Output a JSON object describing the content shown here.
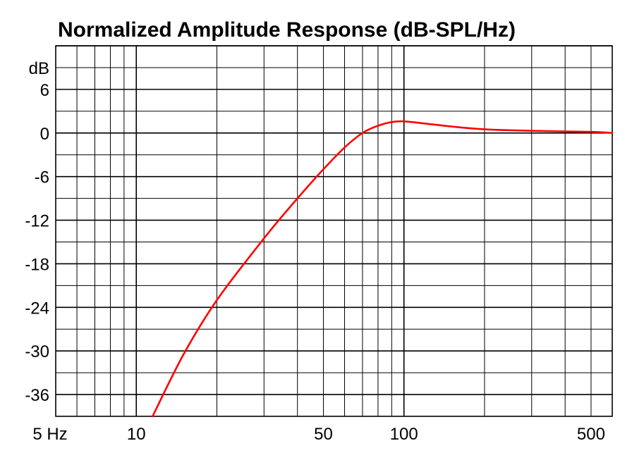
{
  "chart_data": {
    "type": "line",
    "title": "Normalized Amplitude Response (dB-SPL/Hz)",
    "x_scale": "log",
    "xlim": [
      5,
      600
    ],
    "ylim": [
      -39,
      12
    ],
    "x_tick_labels": [
      {
        "value": 5,
        "label": "5 Hz"
      },
      {
        "value": 10,
        "label": "10"
      },
      {
        "value": 50,
        "label": "50"
      },
      {
        "value": 100,
        "label": "100"
      },
      {
        "value": 500,
        "label": "500"
      }
    ],
    "y_tick_labels": [
      {
        "value": 6,
        "label": "6"
      },
      {
        "value": 0,
        "label": "0"
      },
      {
        "value": -6,
        "label": "-6"
      },
      {
        "value": -12,
        "label": "-12"
      },
      {
        "value": -18,
        "label": "-18"
      },
      {
        "value": -24,
        "label": "-24"
      },
      {
        "value": -30,
        "label": "-30"
      },
      {
        "value": -36,
        "label": "-36"
      }
    ],
    "y_unit_label": {
      "value": 9,
      "label": "dB"
    },
    "grid": true,
    "series": [
      {
        "color": "#ff0000",
        "x": [
          11.5,
          15,
          20,
          30,
          40,
          50,
          60,
          70,
          80,
          90,
          100,
          120,
          150,
          200,
          300,
          500,
          600
        ],
        "y": [
          -39,
          -30.5,
          -23,
          -14.5,
          -9,
          -5,
          -2,
          0,
          1,
          1.5,
          1.6,
          1.3,
          0.9,
          0.5,
          0.3,
          0.15,
          0
        ]
      }
    ]
  }
}
